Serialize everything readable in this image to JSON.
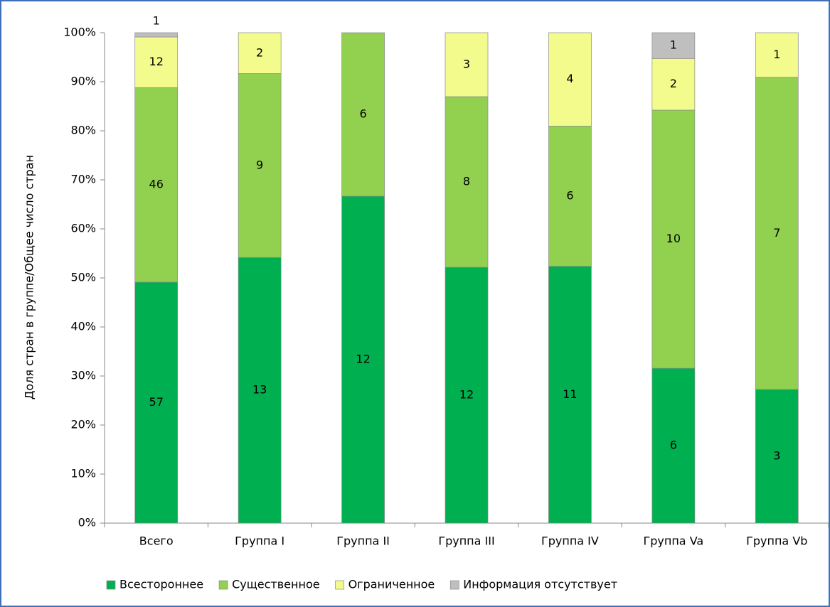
{
  "chart_data": {
    "type": "bar",
    "stack": "percent",
    "y_label": "Доля стран в группе/Общее число стран",
    "categories": [
      "Всего",
      "Группа I",
      "Группа II",
      "Группа III",
      "Группа IV",
      "Группа Va",
      "Группа Vb"
    ],
    "series": [
      {
        "name": "Всестороннее",
        "color": "#00b050",
        "values": [
          57,
          13,
          12,
          12,
          11,
          6,
          3
        ]
      },
      {
        "name": "Существенное",
        "color": "#92d050",
        "values": [
          46,
          9,
          6,
          8,
          6,
          10,
          7
        ]
      },
      {
        "name": "Ограниченное",
        "color": "#f2fb8c",
        "values": [
          12,
          2,
          null,
          3,
          4,
          2,
          1
        ]
      },
      {
        "name": "Информация отсутствует",
        "color": "#bfbfbf",
        "values": [
          1,
          null,
          null,
          null,
          null,
          1,
          null
        ]
      }
    ],
    "ylim": [
      0,
      100
    ],
    "yticks": [
      {
        "value": 0,
        "label": "0%"
      },
      {
        "value": 10,
        "label": "10%"
      },
      {
        "value": 20,
        "label": "20%"
      },
      {
        "value": 30,
        "label": "30%"
      },
      {
        "value": 40,
        "label": "40%"
      },
      {
        "value": 50,
        "label": "50%"
      },
      {
        "value": 60,
        "label": "60%"
      },
      {
        "value": 70,
        "label": "70%"
      },
      {
        "value": 80,
        "label": "80%"
      },
      {
        "value": 90,
        "label": "90%"
      },
      {
        "value": 100,
        "label": "100%"
      }
    ],
    "legend": "bottom"
  }
}
